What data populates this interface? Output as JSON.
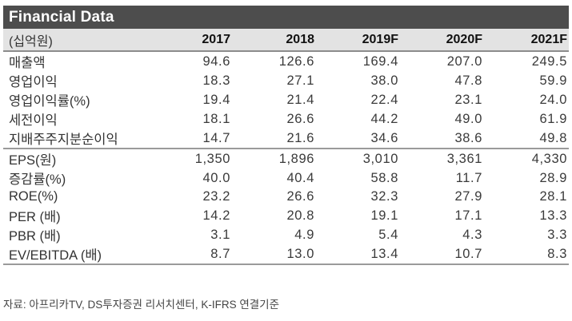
{
  "title": "Financial Data",
  "table": {
    "unit_label": "(십억원)",
    "columns": [
      "2017",
      "2018",
      "2019F",
      "2020F",
      "2021F"
    ],
    "rows": [
      {
        "label": "매출액",
        "values": [
          "94.6",
          "126.6",
          "169.4",
          "207.0",
          "249.5"
        ]
      },
      {
        "label": "영업이익",
        "values": [
          "18.3",
          "27.1",
          "38.0",
          "47.8",
          "59.9"
        ]
      },
      {
        "label": "영업이익률(%)",
        "values": [
          "19.4",
          "21.4",
          "22.4",
          "23.1",
          "24.0"
        ]
      },
      {
        "label": "세전이익",
        "values": [
          "18.1",
          "26.6",
          "44.2",
          "49.0",
          "61.9"
        ]
      },
      {
        "label": "지배주주지분순이익",
        "values": [
          "14.7",
          "21.6",
          "34.6",
          "38.6",
          "49.8"
        ]
      },
      {
        "label": "EPS(원)",
        "values": [
          "1,350",
          "1,896",
          "3,010",
          "3,361",
          "4,330"
        ]
      },
      {
        "label": "증감률(%)",
        "values": [
          "40.0",
          "40.4",
          "58.8",
          "11.7",
          "28.9"
        ]
      },
      {
        "label": "ROE(%)",
        "values": [
          "23.2",
          "26.6",
          "32.3",
          "27.9",
          "28.1"
        ]
      },
      {
        "label": "PER (배)",
        "values": [
          "14.2",
          "20.8",
          "19.1",
          "17.1",
          "13.3"
        ]
      },
      {
        "label": "PBR (배)",
        "values": [
          "3.1",
          "4.9",
          "5.4",
          "4.3",
          "3.3"
        ]
      },
      {
        "label": "EV/EBITDA (배)",
        "values": [
          "8.7",
          "13.0",
          "13.4",
          "10.7",
          "8.3"
        ]
      }
    ]
  },
  "source": "자료: 아프리카TV, DS투자증권 리서치센터, K-IFRS 연결기준",
  "colors": {
    "title_bar": "#4d4d4d",
    "header_row": "#e3e3e3",
    "rule": "#9a9a9a"
  }
}
